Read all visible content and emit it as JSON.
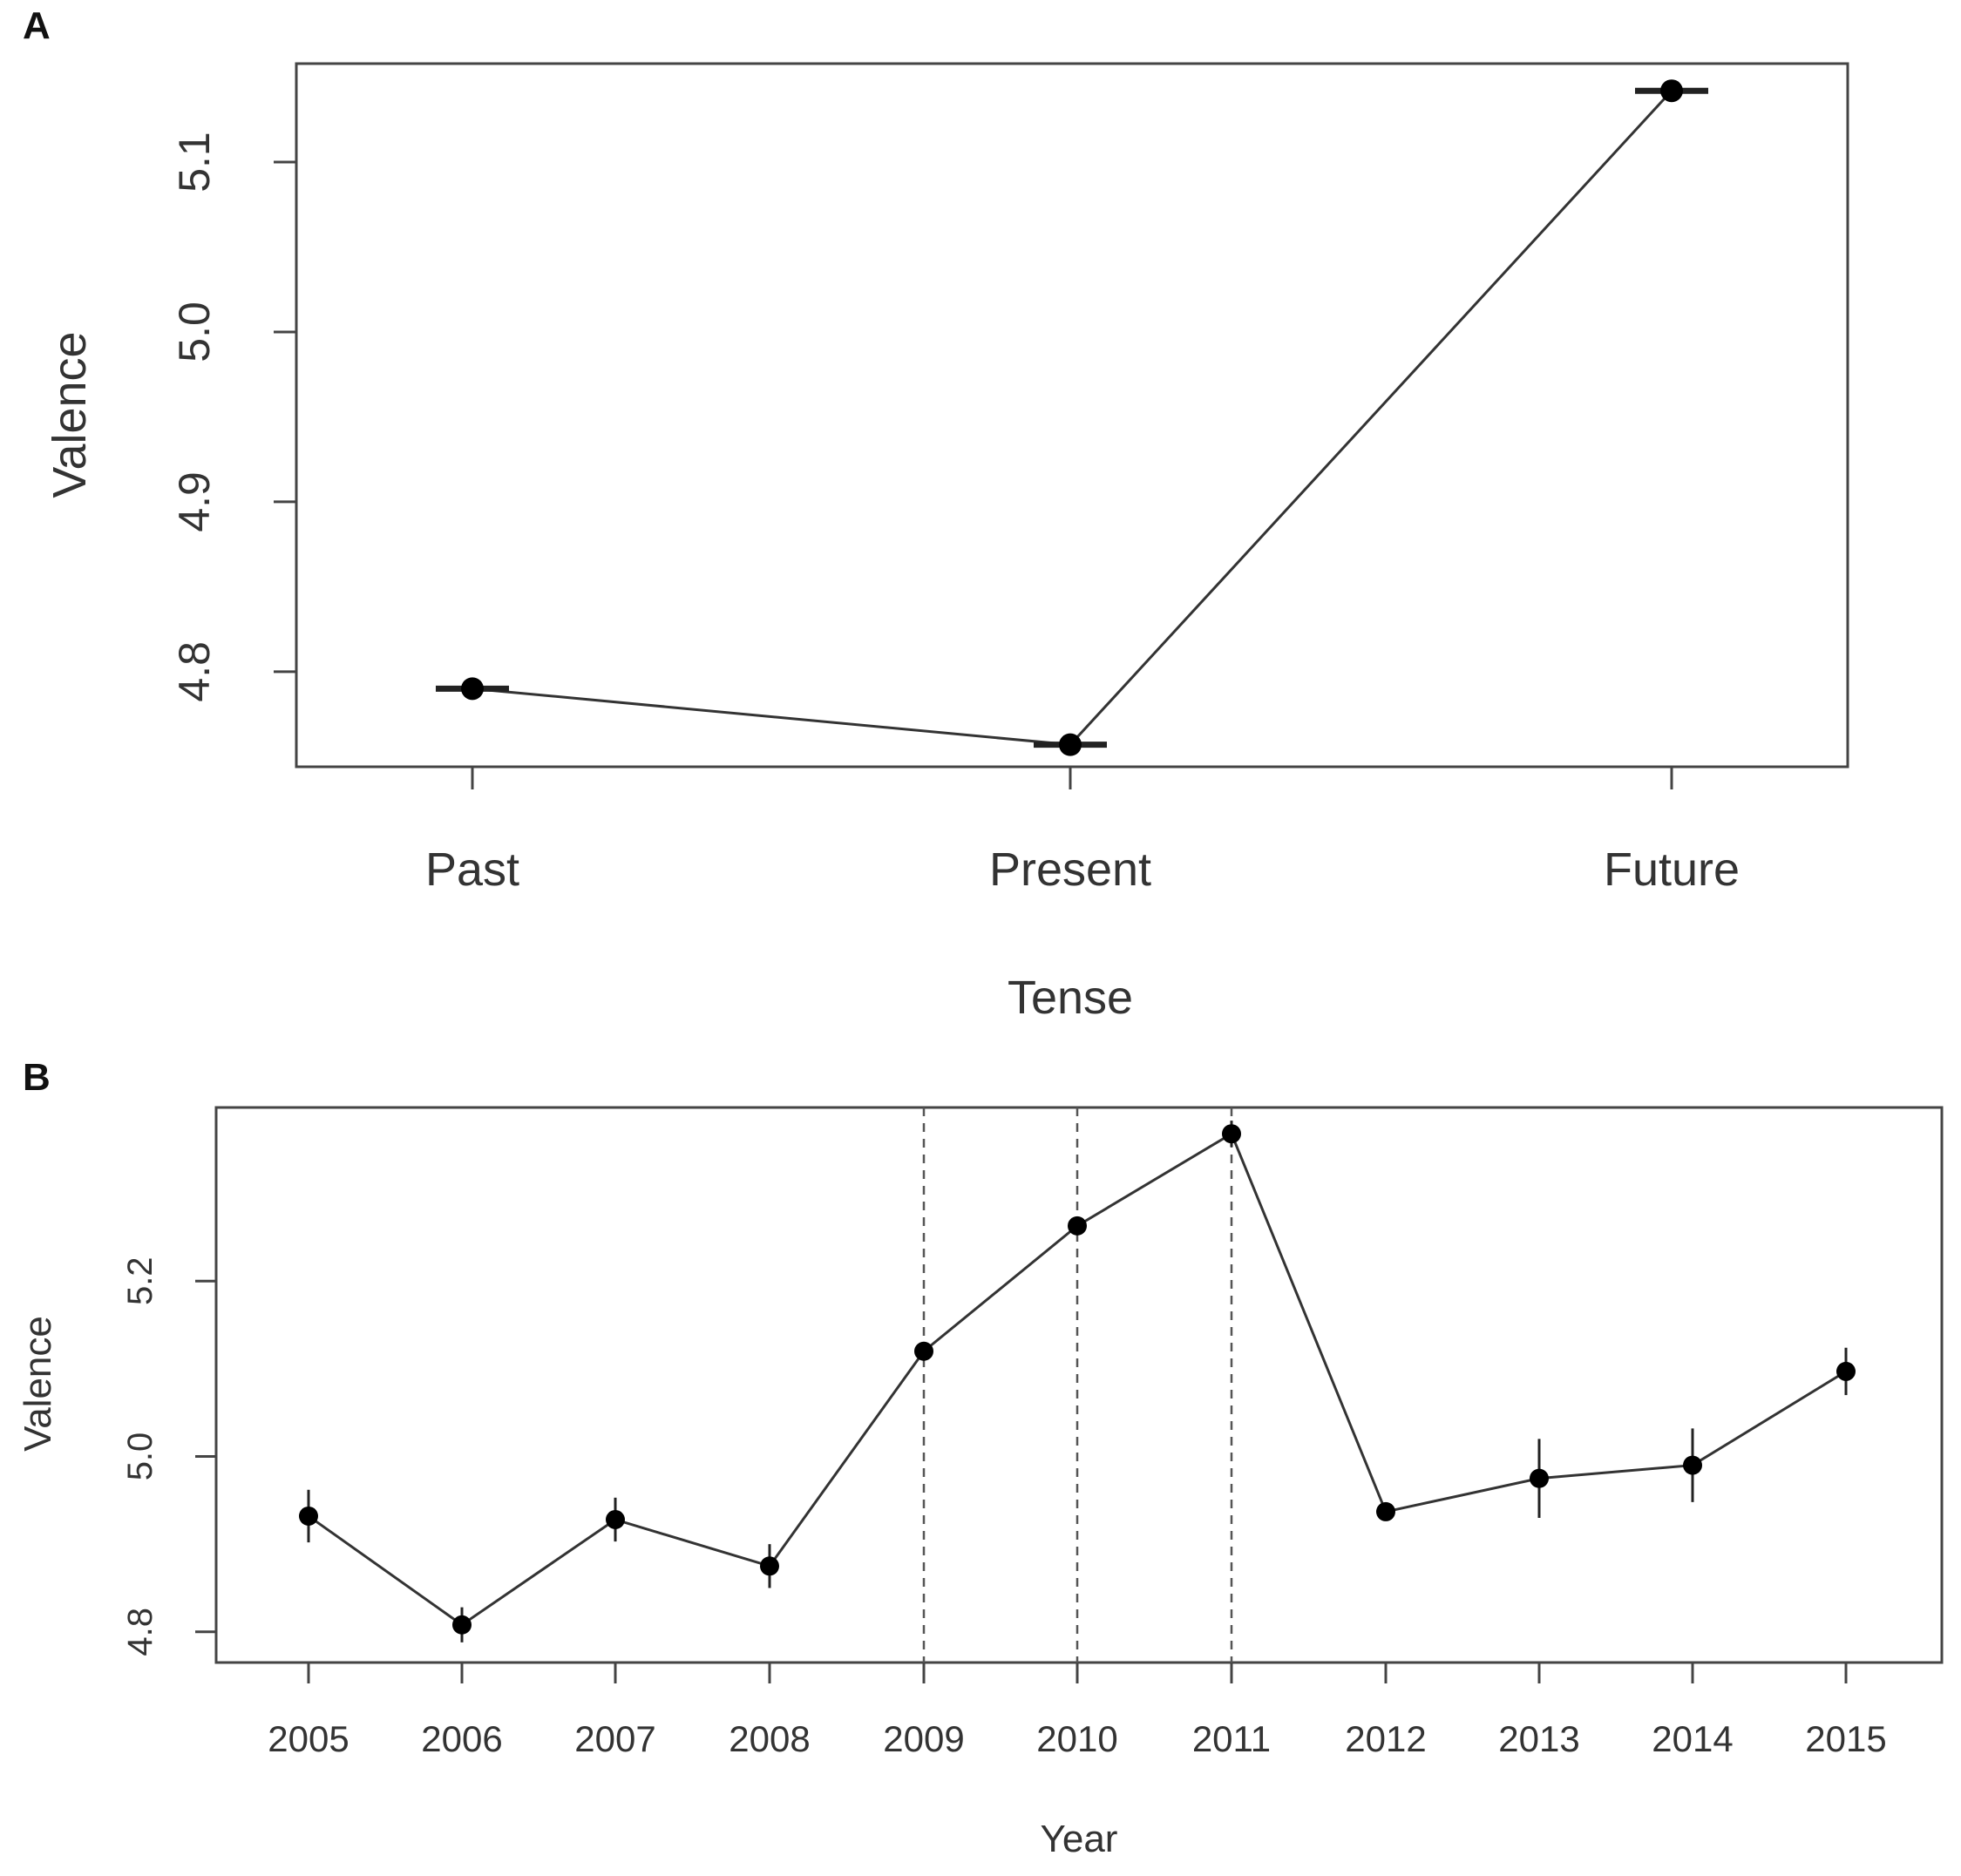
{
  "panels": {
    "a": {
      "label": "A"
    },
    "b": {
      "label": "B"
    }
  },
  "chart_data": [
    {
      "type": "line",
      "title": "",
      "xlabel": "Tense",
      "ylabel": "Valence",
      "categories": [
        "Past",
        "Present",
        "Future"
      ],
      "series": [
        {
          "values": [
            4.79,
            4.757,
            5.142
          ],
          "err": [
            0.002,
            0.003,
            0.002
          ]
        }
      ],
      "ylim": [
        4.744,
        5.158
      ],
      "yticks": [
        "4.8",
        "4.9",
        "5.0",
        "5.1"
      ],
      "error_bars": "horizontal",
      "grid": false,
      "legend": "none"
    },
    {
      "type": "line",
      "title": "",
      "xlabel": "Year",
      "ylabel": "Valence",
      "categories": [
        "2005",
        "2006",
        "2007",
        "2008",
        "2009",
        "2010",
        "2011",
        "2012",
        "2013",
        "2014",
        "2015"
      ],
      "series": [
        {
          "values": [
            4.932,
            4.808,
            4.928,
            4.875,
            5.12,
            5.263,
            5.368,
            4.937,
            4.975,
            4.99,
            5.097
          ],
          "err": [
            0.03,
            0.02,
            0.025,
            0.025,
            0.01,
            0.01,
            0.015,
            0.01,
            0.045,
            0.042,
            0.027
          ]
        }
      ],
      "ylim": [
        4.765,
        5.398
      ],
      "yticks": [
        "4.8",
        "5.0",
        "5.2"
      ],
      "vlines": [
        "2009",
        "2010",
        "2011"
      ],
      "error_bars": "vertical",
      "grid": false,
      "legend": "none"
    }
  ]
}
